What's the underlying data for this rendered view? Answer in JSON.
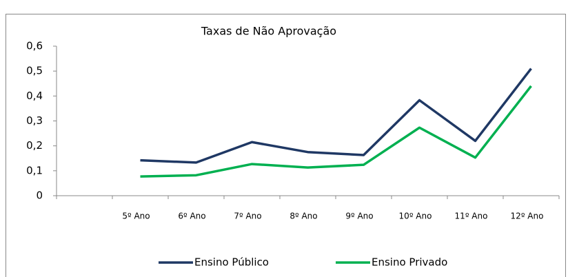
{
  "chart_data": {
    "type": "line",
    "title": "Taxas de Não Aprovação",
    "categories": [
      null,
      "5º Ano",
      "6º Ano",
      "7º Ano",
      "8º Ano",
      "9º Ano",
      "10º Ano",
      "11º Ano",
      "12º Ano"
    ],
    "series": [
      {
        "name": "Ensino Público",
        "color": "#1f3864",
        "values": [
          null,
          0.142,
          0.133,
          0.215,
          0.175,
          0.163,
          0.383,
          0.22,
          0.51
        ]
      },
      {
        "name": "Ensino Privado",
        "color": "#00b050",
        "values": [
          null,
          0.077,
          0.082,
          0.127,
          0.113,
          0.124,
          0.273,
          0.153,
          0.44
        ]
      }
    ],
    "ylim": [
      0,
      0.6
    ],
    "yticks": [
      {
        "value": 0,
        "label": "0"
      },
      {
        "value": 0.1,
        "label": "0,1"
      },
      {
        "value": 0.2,
        "label": "0,2"
      },
      {
        "value": 0.3,
        "label": "0,3"
      },
      {
        "value": 0.4,
        "label": "0,4"
      },
      {
        "value": 0.5,
        "label": "0,5"
      },
      {
        "value": 0.6,
        "label": "0,6"
      }
    ],
    "legend": "bottom"
  }
}
